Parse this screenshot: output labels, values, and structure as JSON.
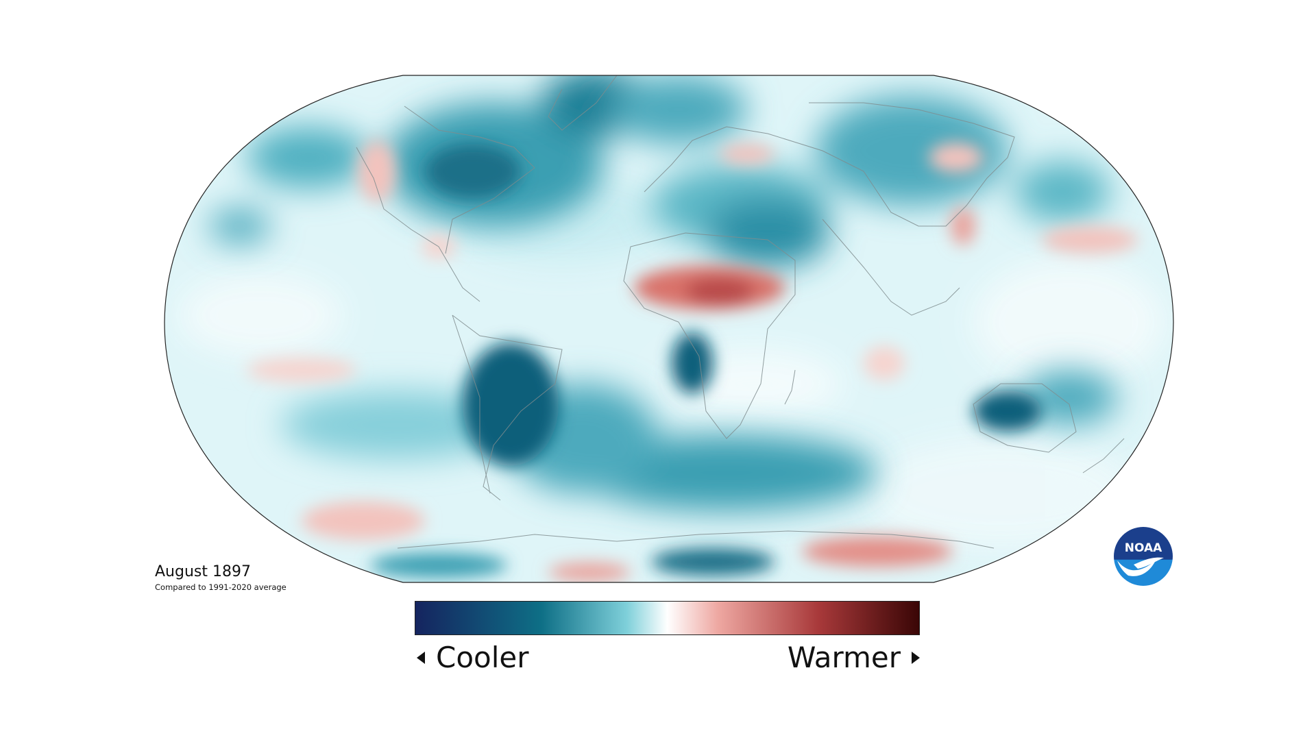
{
  "title": "August 1897",
  "subtitle": "Compared to 1991-2020 average",
  "legend": {
    "cooler_label": "Cooler",
    "warmer_label": "Warmer",
    "colors": [
      "#15245f",
      "#0e6f86",
      "#7fd0da",
      "#ffffff",
      "#eea8a2",
      "#a8393a",
      "#3a0606"
    ]
  },
  "logo": {
    "text": "NOAA",
    "color_top": "#1b3f8c",
    "color_bottom": "#1f8ad8"
  },
  "map": {
    "projection": "robinson",
    "colors": {
      "ocean_base": "#dff5f8",
      "cool_strong": "#0e5f7a",
      "cool_mid": "#3ea6b8",
      "cool_light": "#a7e1e8",
      "warm_light": "#f6c9c4",
      "warm_mid": "#d9726a",
      "warm_strong": "#a8393a"
    }
  }
}
